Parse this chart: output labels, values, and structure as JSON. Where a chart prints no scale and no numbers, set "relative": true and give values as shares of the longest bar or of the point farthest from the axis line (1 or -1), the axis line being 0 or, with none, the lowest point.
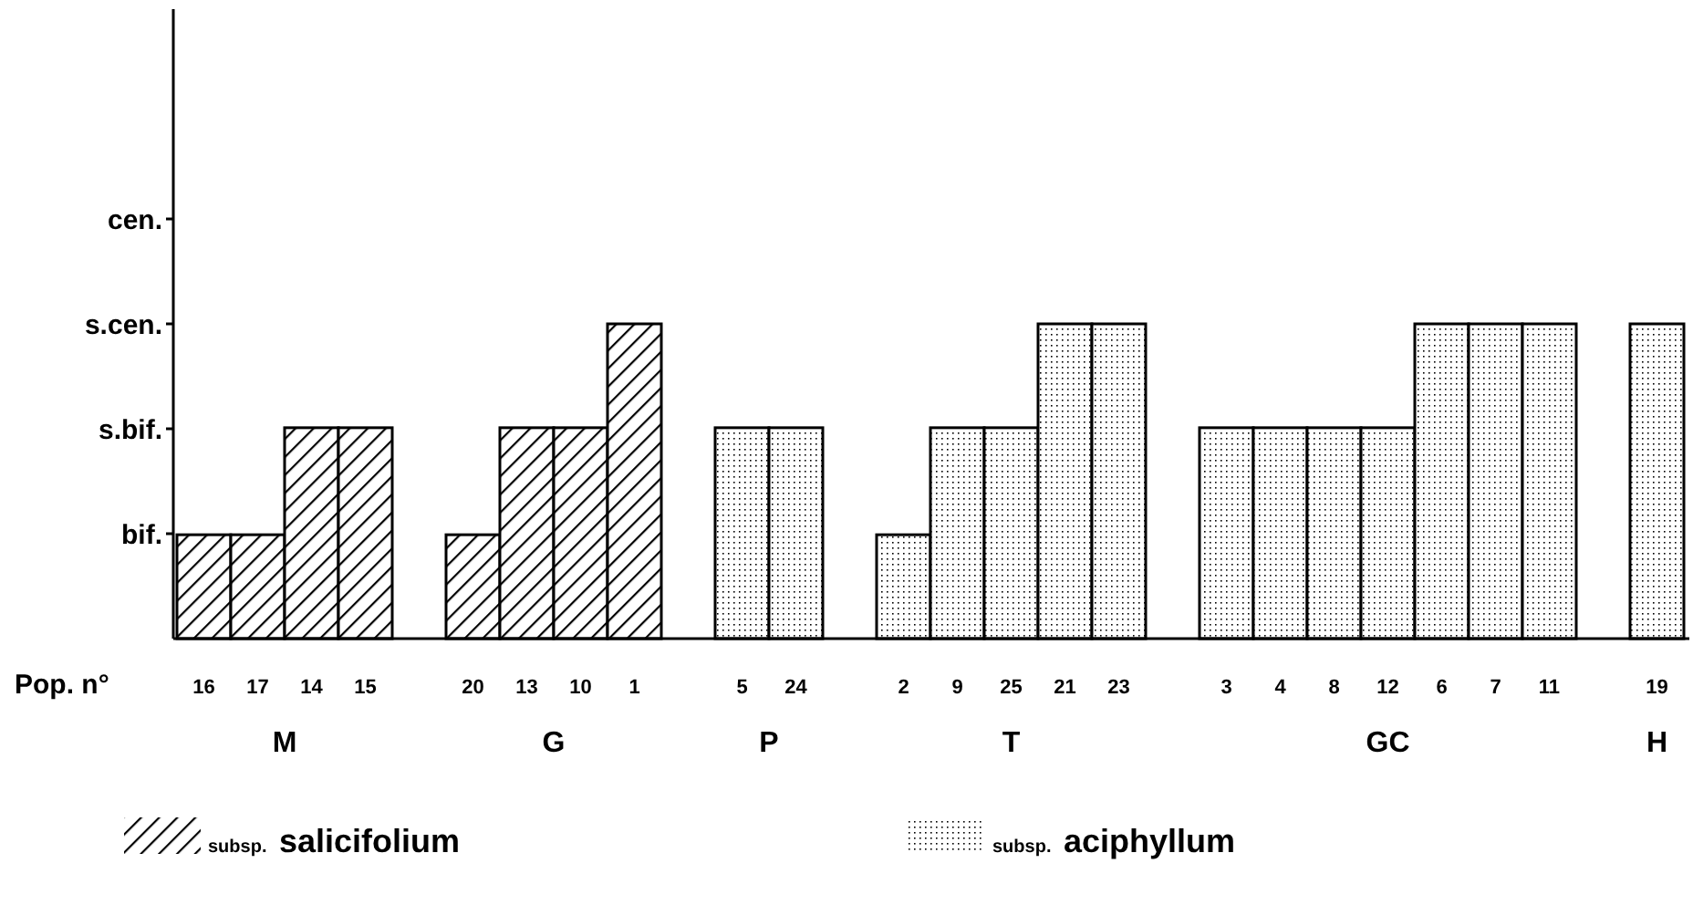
{
  "chart_data": {
    "type": "bar",
    "xlabel": "Pop. n°",
    "relative": true,
    "categories": [
      "16",
      "17",
      "14",
      "15",
      null,
      "20",
      "13",
      "10",
      "1",
      null,
      "5",
      "24",
      null,
      "2",
      "9",
      "25",
      "21",
      "23",
      null,
      "3",
      "4",
      "8",
      "12",
      "6",
      "7",
      "11",
      null,
      "19"
    ],
    "series": [
      {
        "name": "subsp. salicifolium",
        "color": "#000000",
        "values": [
          0.33,
          0.33,
          0.67,
          0.67,
          null,
          0.33,
          0.67,
          0.67,
          1,
          null,
          null,
          null,
          null,
          null,
          null,
          null,
          null,
          null,
          null,
          null,
          null,
          null,
          null,
          null,
          null,
          null,
          null,
          null
        ]
      },
      {
        "name": "subsp. aciphyllum",
        "color": "#000000",
        "values": [
          null,
          null,
          null,
          null,
          null,
          null,
          null,
          null,
          null,
          null,
          0.67,
          0.67,
          null,
          0.33,
          0.67,
          0.67,
          1,
          1,
          null,
          0.67,
          0.67,
          0.67,
          0.67,
          1,
          1,
          1,
          null,
          1
        ]
      }
    ],
    "annotations": [
      "M",
      "G",
      "P",
      "T",
      "GC",
      "H",
      "bif.",
      "s.bif.",
      "s.cen.",
      "cen."
    ],
    "legend": "bottom"
  }
}
